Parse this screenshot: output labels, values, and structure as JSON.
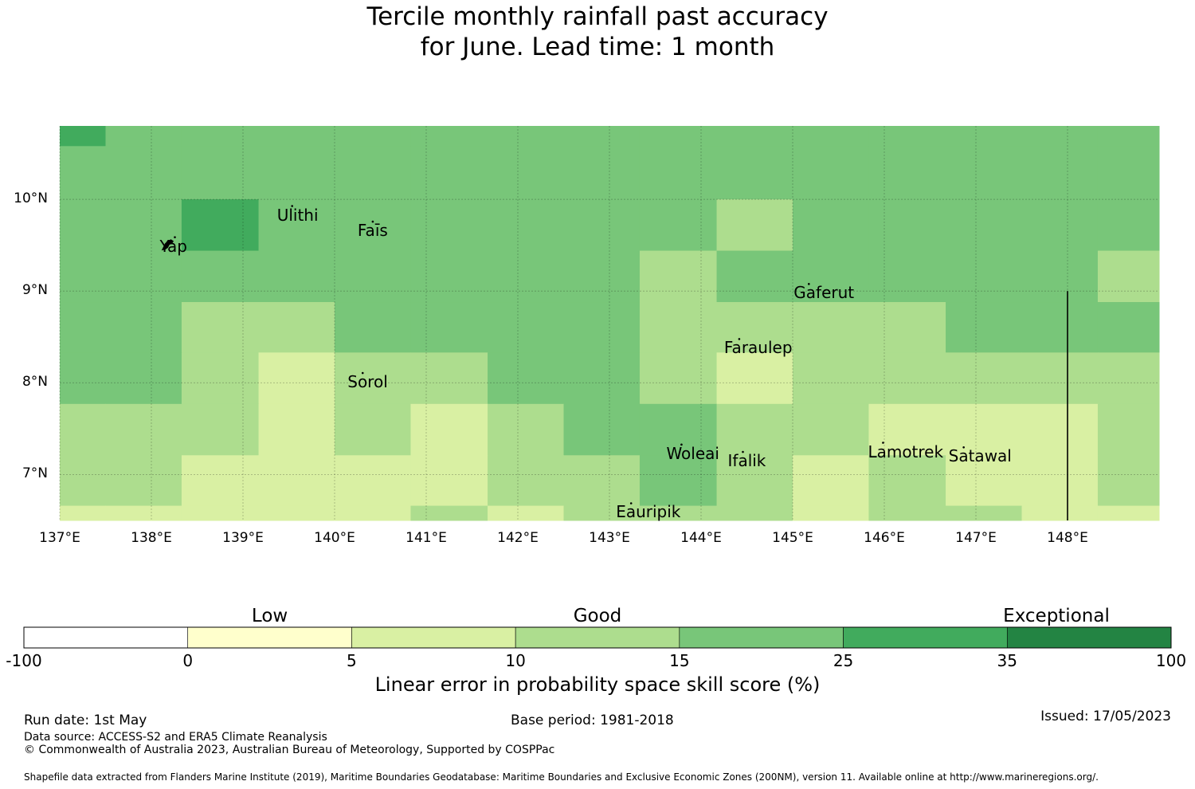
{
  "title": {
    "line1": "Tercile monthly rainfall past accuracy",
    "line2": "for June. Lead time: 1 month"
  },
  "map": {
    "lon_range": [
      137.0,
      149.0
    ],
    "lat_range": [
      6.5,
      10.8
    ],
    "lon_ticks": [
      {
        "value": 137,
        "label": "137°E"
      },
      {
        "value": 138,
        "label": "138°E"
      },
      {
        "value": 139,
        "label": "139°E"
      },
      {
        "value": 140,
        "label": "140°E"
      },
      {
        "value": 141,
        "label": "141°E"
      },
      {
        "value": 142,
        "label": "142°E"
      },
      {
        "value": 143,
        "label": "143°E"
      },
      {
        "value": 144,
        "label": "144°E"
      },
      {
        "value": 145,
        "label": "145°E"
      },
      {
        "value": 146,
        "label": "146°E"
      },
      {
        "value": 147,
        "label": "147°E"
      },
      {
        "value": 148,
        "label": "148°E"
      }
    ],
    "lat_ticks": [
      {
        "value": 10,
        "label": "10°N"
      },
      {
        "value": 9,
        "label": "9°N"
      },
      {
        "value": 8,
        "label": "8°N"
      },
      {
        "value": 7,
        "label": "7°N"
      }
    ],
    "places": [
      {
        "name": "Yap",
        "lon": 138.1,
        "lat": 9.5
      },
      {
        "name": "Ulithi",
        "lon": 139.38,
        "lat": 9.84
      },
      {
        "name": "Faīs",
        "lon": 140.26,
        "lat": 9.67
      },
      {
        "name": "Gaferut",
        "lon": 145.02,
        "lat": 8.99
      },
      {
        "name": "Faraulep",
        "lon": 144.26,
        "lat": 8.39
      },
      {
        "name": "Sorol",
        "lon": 140.15,
        "lat": 8.02
      },
      {
        "name": "Woleai",
        "lon": 143.63,
        "lat": 7.24
      },
      {
        "name": "Ifalik",
        "lon": 144.3,
        "lat": 7.16
      },
      {
        "name": "Lamotrek",
        "lon": 145.83,
        "lat": 7.26
      },
      {
        "name": "Satawal",
        "lon": 146.71,
        "lat": 7.21
      },
      {
        "name": "Eauripik",
        "lon": 143.08,
        "lat": 6.6
      }
    ],
    "boundary_line": {
      "lon": 148.0,
      "lat_from": 9.0,
      "lat_to": 6.5
    },
    "grid_lon_edges": [
      137.0,
      137.5,
      138.33,
      139.17,
      140.0,
      140.83,
      141.67,
      142.5,
      143.33,
      144.17,
      145.0,
      145.83,
      146.67,
      147.5,
      148.33,
      149.0
    ],
    "grid_lat_edges": [
      10.8,
      10.58,
      10.0,
      9.44,
      8.88,
      8.33,
      7.77,
      7.21,
      6.66,
      6.5
    ],
    "grid_classes": [
      [
        5,
        4,
        4,
        4,
        4,
        4,
        4,
        4,
        4,
        4,
        4,
        4,
        4,
        4,
        4
      ],
      [
        4,
        4,
        4,
        4,
        4,
        4,
        4,
        4,
        4,
        4,
        4,
        4,
        4,
        4,
        4
      ],
      [
        4,
        4,
        5,
        4,
        4,
        4,
        4,
        4,
        4,
        3,
        4,
        4,
        4,
        4,
        4
      ],
      [
        4,
        4,
        4,
        4,
        4,
        4,
        4,
        4,
        3,
        4,
        4,
        4,
        4,
        4,
        3
      ],
      [
        4,
        4,
        3,
        3,
        4,
        4,
        4,
        4,
        3,
        3,
        3,
        3,
        4,
        4,
        4
      ],
      [
        4,
        4,
        3,
        2,
        3,
        3,
        4,
        4,
        3,
        2,
        3,
        3,
        3,
        3,
        3
      ],
      [
        3,
        3,
        3,
        2,
        3,
        2,
        3,
        4,
        4,
        3,
        3,
        2,
        2,
        2,
        3
      ],
      [
        3,
        3,
        2,
        2,
        2,
        2,
        3,
        3,
        4,
        3,
        2,
        3,
        2,
        2,
        3
      ],
      [
        2,
        2,
        2,
        2,
        2,
        3,
        2,
        3,
        3,
        3,
        2,
        3,
        3,
        2,
        2
      ]
    ]
  },
  "colorbar": {
    "colors": [
      "#ffffff",
      "#ffffcc",
      "#d9f0a3",
      "#addd8e",
      "#78c679",
      "#41ab5d",
      "#238443"
    ],
    "tick_labels": [
      "-100",
      "0",
      "5",
      "10",
      "15",
      "25",
      "35",
      "100"
    ],
    "categories": [
      {
        "label": "Low",
        "boundary_index": 1.5
      },
      {
        "label": "Good",
        "boundary_index": 3.5
      },
      {
        "label": "Exceptional",
        "boundary_index": 6.3
      }
    ],
    "title": "Linear error in probability space skill score (%)"
  },
  "footer": {
    "run_date": "Run date: 1st May",
    "base_period": "Base period: 1981-2018",
    "issued": "Issued: 17/05/2023",
    "data_source": "Data source: ACCESS-S2 and ERA5 Climate Reanalysis",
    "copyright": "© Commonwealth of Australia 2023, Australian Bureau of Meteorology, Supported by COSPPac",
    "shapefile": "Shapefile data extracted from Flanders Marine Institute (2019), Maritime Boundaries Geodatabase: Maritime Boundaries and Exclusive Economic Zones (200NM), version 11. Available online at http://www.marineregions.org/."
  }
}
